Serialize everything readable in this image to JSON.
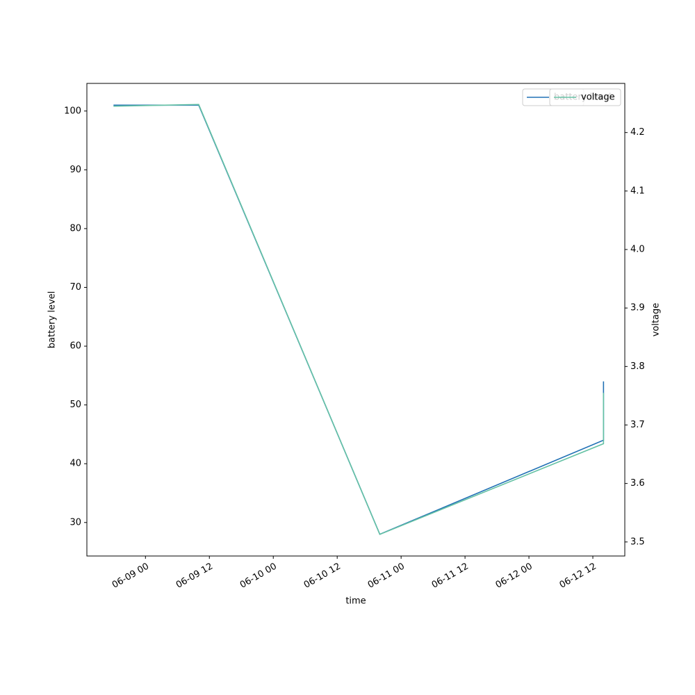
{
  "chart_data": {
    "type": "line",
    "x_label": "time",
    "y_label": "battery level",
    "y2_label": "voltage",
    "xlim": [
      "06-08 13",
      "06-12 18"
    ],
    "xticks": [
      "06-09 00",
      "06-09 12",
      "06-10 00",
      "06-10 12",
      "06-11 00",
      "06-11 12",
      "06-12 00",
      "06-12 12"
    ],
    "ylim": [
      24.3,
      104.7
    ],
    "yticks": [
      30,
      40,
      50,
      60,
      70,
      80,
      90,
      100
    ],
    "y2lim": [
      3.476,
      4.284
    ],
    "y2ticks": [
      3.5,
      3.6,
      3.7,
      3.8,
      3.9,
      {
        "value": 4,
        "label": "4.0"
      },
      4.1,
      4.2
    ],
    "legend": "upper right",
    "series": [
      {
        "name": "battery level",
        "color": "#2171b5",
        "x": [
          "06-08 18",
          "06-09 10",
          "06-10 20",
          "06-12 14",
          "06-12 14",
          "06-12 14"
        ],
        "values": [
          101,
          101,
          28,
          44,
          54,
          52
        ]
      },
      {
        "name": "voltage",
        "color": "#66c2a5",
        "axis": "y2",
        "x": [
          "06-08 18",
          "06-09 10",
          "06-10 20",
          "06-12 14",
          "06-12 14"
        ],
        "values": [
          4.245,
          4.248,
          3.513,
          3.668,
          3.755
        ]
      }
    ]
  }
}
